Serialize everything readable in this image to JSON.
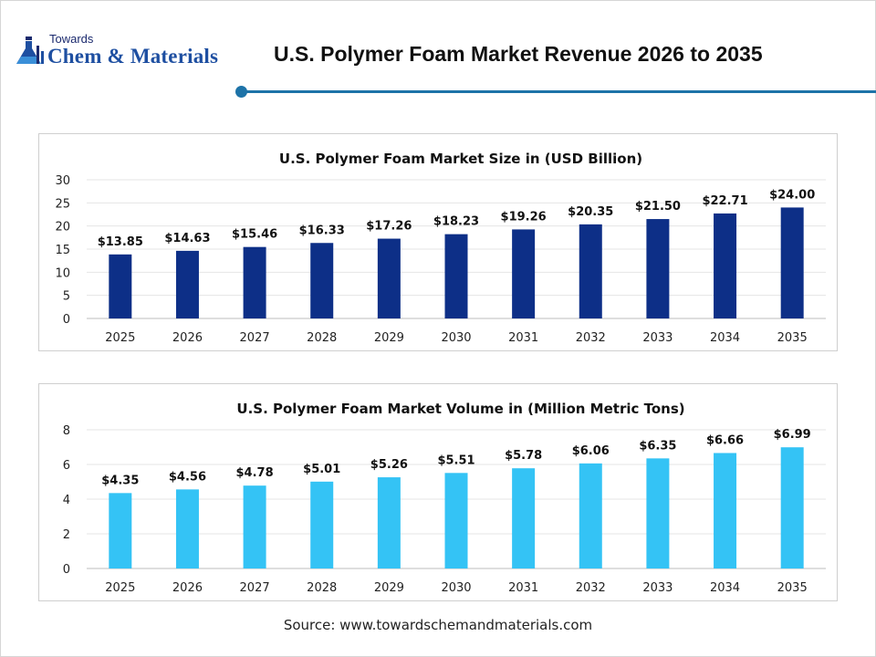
{
  "header": {
    "logo_towards": "Towards",
    "logo_main": "Chem & Materials",
    "title": "U.S. Polymer Foam Market Revenue 2026 to 2035",
    "accent_color": "#1d73a8"
  },
  "chart_data": [
    {
      "type": "bar",
      "title": "U.S. Polymer Foam Market Size in (USD Billion)",
      "categories": [
        "2025",
        "2026",
        "2027",
        "2028",
        "2029",
        "2030",
        "2031",
        "2032",
        "2033",
        "2034",
        "2035"
      ],
      "values": [
        13.85,
        14.63,
        15.46,
        16.33,
        17.26,
        18.23,
        19.26,
        20.35,
        21.5,
        22.71,
        24.0
      ],
      "data_labels": [
        "$13.85",
        "$14.63",
        "$15.46",
        "$16.33",
        "$17.26",
        "$18.23",
        "$19.26",
        "$20.35",
        "$21.50",
        "$22.71",
        "$24.00"
      ],
      "ylim": [
        0,
        30
      ],
      "yticks": [
        "0",
        "5",
        "10",
        "15",
        "20",
        "25",
        "30"
      ],
      "ytick_values": [
        0,
        5,
        10,
        15,
        20,
        25,
        30
      ],
      "grid": true,
      "bar_color": "#0d2f87"
    },
    {
      "type": "bar",
      "title": "U.S. Polymer Foam Market Volume in (Million Metric Tons)",
      "categories": [
        "2025",
        "2026",
        "2027",
        "2028",
        "2029",
        "2030",
        "2031",
        "2032",
        "2033",
        "2034",
        "2035"
      ],
      "values": [
        4.35,
        4.56,
        4.78,
        5.01,
        5.26,
        5.51,
        5.78,
        6.06,
        6.35,
        6.66,
        6.99
      ],
      "data_labels": [
        "$4.35",
        "$4.56",
        "$4.78",
        "$5.01",
        "$5.26",
        "$5.51",
        "$5.78",
        "$6.06",
        "$6.35",
        "$6.66",
        "$6.99"
      ],
      "ylim": [
        0,
        8
      ],
      "yticks": [
        "0",
        "2",
        "4",
        "6",
        "8"
      ],
      "ytick_values": [
        0,
        2,
        4,
        6,
        8
      ],
      "grid": true,
      "bar_color": "#34c3f5"
    }
  ],
  "footer": {
    "source": "Source: www.towardschemandmaterials.com"
  }
}
